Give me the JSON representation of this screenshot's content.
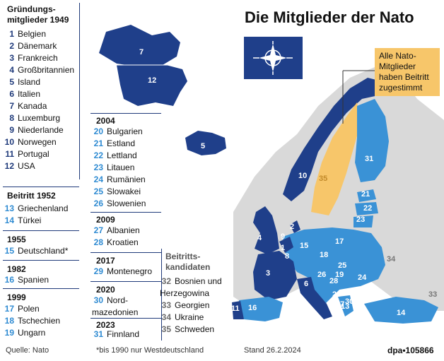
{
  "title": "Die Mitglieder der Nato",
  "callout": "Alle Nato-Mitglieder haben Beitritt zugestimmt",
  "colors": {
    "founding": "#1f3f8a",
    "later": "#3a92d6",
    "candidate": "#c9c9c9",
    "sweden": "#f7c66a",
    "other_land": "#d9d9d9",
    "sea": "#ffffff"
  },
  "founding": {
    "heading": "Gründungs-mitglieder 1949",
    "items": [
      {
        "n": "1",
        "name": "Belgien"
      },
      {
        "n": "2",
        "name": "Dänemark"
      },
      {
        "n": "3",
        "name": "Frankreich"
      },
      {
        "n": "4",
        "name": "Großbritannien"
      },
      {
        "n": "5",
        "name": "Island"
      },
      {
        "n": "6",
        "name": "Italien"
      },
      {
        "n": "7",
        "name": "Kanada"
      },
      {
        "n": "8",
        "name": "Luxemburg"
      },
      {
        "n": "9",
        "name": "Niederlande"
      },
      {
        "n": "10",
        "name": "Norwegen"
      },
      {
        "n": "11",
        "name": "Portugal"
      },
      {
        "n": "12",
        "name": "USA"
      }
    ]
  },
  "y1952": {
    "heading": "Beitritt 1952",
    "items": [
      {
        "n": "13",
        "name": "Griechenland"
      },
      {
        "n": "14",
        "name": "Türkei"
      }
    ]
  },
  "y1955": {
    "heading": "1955",
    "items": [
      {
        "n": "15",
        "name": "Deutschland*"
      }
    ]
  },
  "y1982": {
    "heading": "1982",
    "items": [
      {
        "n": "16",
        "name": "Spanien"
      }
    ]
  },
  "y1999": {
    "heading": "1999",
    "items": [
      {
        "n": "17",
        "name": "Polen"
      },
      {
        "n": "18",
        "name": "Tschechien"
      },
      {
        "n": "19",
        "name": "Ungarn"
      }
    ]
  },
  "y2004": {
    "heading": "2004",
    "items": [
      {
        "n": "20",
        "name": "Bulgarien"
      },
      {
        "n": "21",
        "name": "Estland"
      },
      {
        "n": "22",
        "name": "Lettland"
      },
      {
        "n": "23",
        "name": "Litauen"
      },
      {
        "n": "24",
        "name": "Rumänien"
      },
      {
        "n": "25",
        "name": "Slowakei"
      },
      {
        "n": "26",
        "name": "Slowenien"
      }
    ]
  },
  "y2009": {
    "heading": "2009",
    "items": [
      {
        "n": "27",
        "name": "Albanien"
      },
      {
        "n": "28",
        "name": "Kroatien"
      }
    ]
  },
  "y2017": {
    "heading": "2017",
    "items": [
      {
        "n": "29",
        "name": "Montenegro"
      }
    ]
  },
  "y2020": {
    "heading": "2020",
    "items": [
      {
        "n": "30",
        "name": "Nord-mazedonien"
      }
    ]
  },
  "y2023": {
    "heading": "2023",
    "items": [
      {
        "n": "31",
        "name": "Finnland"
      }
    ]
  },
  "candidates": {
    "heading": "Beitritts-kandidaten",
    "items": [
      {
        "n": "32",
        "name": "Bosnien und Herzegowina"
      },
      {
        "n": "33",
        "name": "Georgien"
      },
      {
        "n": "34",
        "name": "Ukraine"
      },
      {
        "n": "35",
        "name": "Schweden"
      }
    ]
  },
  "footer": {
    "source": "Quelle: Nato",
    "note": "*bis 1990 nur Westdeutschland",
    "date": "Stand 26.2.2024",
    "credit": "dpa•105866"
  },
  "map_labels": [
    "1",
    "2",
    "3",
    "4",
    "5",
    "6",
    "7",
    "8",
    "9",
    "10",
    "11",
    "12",
    "13",
    "14",
    "15",
    "16",
    "17",
    "18",
    "19",
    "20",
    "21",
    "22",
    "23",
    "24",
    "25",
    "26",
    "27",
    "28",
    "29",
    "30",
    "31",
    "33",
    "34",
    "35"
  ]
}
